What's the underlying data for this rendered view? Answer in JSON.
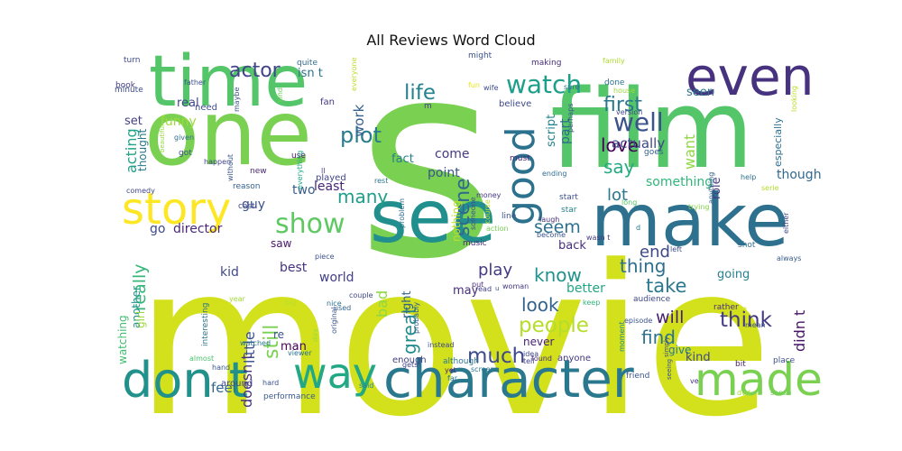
{
  "chart_data": {
    "type": "wordcloud",
    "title": "All Reviews Word Cloud",
    "words": [
      {
        "text": "movie",
        "weight": 100,
        "color": "#d2e11c"
      },
      {
        "text": "s",
        "weight": 95,
        "color": "#7ad151"
      },
      {
        "text": "film",
        "weight": 78,
        "color": "#54c568"
      },
      {
        "text": "one",
        "weight": 62,
        "color": "#7ad151"
      },
      {
        "text": "time",
        "weight": 52,
        "color": "#54c568"
      },
      {
        "text": "see",
        "weight": 50,
        "color": "#218f8d"
      },
      {
        "text": "make",
        "weight": 48,
        "color": "#2d718e"
      },
      {
        "text": "even",
        "weight": 44,
        "color": "#46327e"
      },
      {
        "text": "character",
        "weight": 42,
        "color": "#2a788e"
      },
      {
        "text": "way",
        "weight": 38,
        "color": "#22a884"
      },
      {
        "text": "don t",
        "weight": 37,
        "color": "#21918c"
      },
      {
        "text": "made",
        "weight": 36,
        "color": "#7ad151"
      },
      {
        "text": "good",
        "weight": 34,
        "color": "#2c728e"
      },
      {
        "text": "story",
        "weight": 34,
        "color": "#fde725"
      },
      {
        "text": "show",
        "weight": 28,
        "color": "#5ec962"
      },
      {
        "text": "well",
        "weight": 22,
        "color": "#3b528b"
      },
      {
        "text": "watch",
        "weight": 22,
        "color": "#1f9e89"
      },
      {
        "text": "scene",
        "weight": 22,
        "color": "#31688e"
      },
      {
        "text": "life",
        "weight": 20,
        "color": "#26828e"
      },
      {
        "text": "actor",
        "weight": 20,
        "color": "#414487"
      },
      {
        "text": "plot",
        "weight": 20,
        "color": "#287c8e"
      },
      {
        "text": "people",
        "weight": 20,
        "color": "#b5de2b"
      },
      {
        "text": "still",
        "weight": 20,
        "color": "#7ad151"
      },
      {
        "text": "really",
        "weight": 19,
        "color": "#35b779"
      },
      {
        "text": "much",
        "weight": 19,
        "color": "#3e4989"
      },
      {
        "text": "first",
        "weight": 18,
        "color": "#2a788e"
      },
      {
        "text": "think",
        "weight": 18,
        "color": "#443983"
      },
      {
        "text": "love",
        "weight": 17,
        "color": "#440154"
      },
      {
        "text": "great",
        "weight": 17,
        "color": "#228c8d"
      },
      {
        "text": "many",
        "weight": 17,
        "color": "#1f9e89"
      },
      {
        "text": "seem",
        "weight": 17,
        "color": "#2c728e"
      },
      {
        "text": "acting",
        "weight": 16,
        "color": "#20a386"
      },
      {
        "text": "say",
        "weight": 16,
        "color": "#25ab82"
      },
      {
        "text": "look",
        "weight": 16,
        "color": "#33638d"
      },
      {
        "text": "find",
        "weight": 16,
        "color": "#2c728e"
      },
      {
        "text": "take",
        "weight": 16,
        "color": "#2a788e"
      },
      {
        "text": "thing",
        "weight": 16,
        "color": "#2e6f8e"
      },
      {
        "text": "know",
        "weight": 16,
        "color": "#21918c"
      },
      {
        "text": "work",
        "weight": 15,
        "color": "#35608d"
      },
      {
        "text": "want",
        "weight": 15,
        "color": "#90d743"
      },
      {
        "text": "little",
        "weight": 15,
        "color": "#3b528b"
      },
      {
        "text": "bad",
        "weight": 15,
        "color": "#8fd744"
      },
      {
        "text": "will",
        "weight": 15,
        "color": "#481f70"
      },
      {
        "text": "didn t",
        "weight": 15,
        "color": "#471365"
      },
      {
        "text": "lot",
        "weight": 14,
        "color": "#2a788e"
      },
      {
        "text": "end",
        "weight": 14,
        "color": "#3e4a89"
      },
      {
        "text": "play",
        "weight": 14,
        "color": "#443a83"
      },
      {
        "text": "doesn t",
        "weight": 14,
        "color": "#46337f"
      },
      {
        "text": "feel",
        "weight": 13,
        "color": "#31688e"
      },
      {
        "text": "actually",
        "weight": 13,
        "color": "#404688"
      },
      {
        "text": "funny",
        "weight": 12,
        "color": "#9fda3a"
      },
      {
        "text": "real",
        "weight": 12,
        "color": "#3f4788"
      },
      {
        "text": "isn t",
        "weight": 12,
        "color": "#2c728e"
      },
      {
        "text": "set",
        "weight": 12,
        "color": "#433e85"
      },
      {
        "text": "thought",
        "weight": 12,
        "color": "#2a788e"
      },
      {
        "text": "come",
        "weight": 12,
        "color": "#443983"
      },
      {
        "text": "point",
        "weight": 12,
        "color": "#39558c"
      },
      {
        "text": "part",
        "weight": 12,
        "color": "#2e6d8e"
      },
      {
        "text": "fact",
        "weight": 11,
        "color": "#277f8e"
      },
      {
        "text": "least",
        "weight": 12,
        "color": "#482576"
      },
      {
        "text": "two",
        "weight": 12,
        "color": "#355e8d"
      },
      {
        "text": "guy",
        "weight": 12,
        "color": "#3b528b"
      },
      {
        "text": "script",
        "weight": 12,
        "color": "#25848e"
      },
      {
        "text": "seen",
        "weight": 12,
        "color": "#2c728e"
      },
      {
        "text": "something",
        "weight": 12,
        "color": "#31b57b"
      },
      {
        "text": "role",
        "weight": 12,
        "color": "#443983"
      },
      {
        "text": "though",
        "weight": 12,
        "color": "#30698e"
      },
      {
        "text": "director",
        "weight": 12,
        "color": "#482878"
      },
      {
        "text": "go",
        "weight": 12,
        "color": "#3e4a89"
      },
      {
        "text": "another",
        "weight": 12,
        "color": "#21918c"
      },
      {
        "text": "best",
        "weight": 12,
        "color": "#46327e"
      },
      {
        "text": "world",
        "weight": 12,
        "color": "#423f85"
      },
      {
        "text": "saw",
        "weight": 12,
        "color": "#481a6c"
      },
      {
        "text": "kid",
        "weight": 12,
        "color": "#3f4889"
      },
      {
        "text": "right",
        "weight": 12,
        "color": "#33638d"
      },
      {
        "text": "back",
        "weight": 12,
        "color": "#472f7d"
      },
      {
        "text": "better",
        "weight": 12,
        "color": "#21a585"
      },
      {
        "text": "going",
        "weight": 12,
        "color": "#26818e"
      },
      {
        "text": "may",
        "weight": 11,
        "color": "#472d7b"
      },
      {
        "text": "give",
        "weight": 11,
        "color": "#2a788e"
      },
      {
        "text": "never",
        "weight": 11,
        "color": "#482173"
      },
      {
        "text": "man",
        "weight": 11,
        "color": "#440154"
      },
      {
        "text": "re",
        "weight": 11,
        "color": "#3b518b"
      },
      {
        "text": "kind",
        "weight": 11,
        "color": "#3e4989"
      },
      {
        "text": "watching",
        "weight": 11,
        "color": "#42be71"
      },
      {
        "text": "girl",
        "weight": 11,
        "color": "#9bd93c"
      },
      {
        "text": "nothing",
        "weight": 11,
        "color": "#bddf26"
      },
      {
        "text": "interesting",
        "weight": 9,
        "color": "#2c738e"
      },
      {
        "text": "around",
        "weight": 9,
        "color": "#3f4788"
      },
      {
        "text": "performance",
        "weight": 8,
        "color": "#38598c"
      },
      {
        "text": "enough",
        "weight": 9,
        "color": "#424186"
      },
      {
        "text": "although",
        "weight": 9,
        "color": "#2a778e"
      },
      {
        "text": "anyone",
        "weight": 9,
        "color": "#453882"
      },
      {
        "text": "friend",
        "weight": 9,
        "color": "#3a548c"
      },
      {
        "text": "moment",
        "weight": 8,
        "color": "#23888e"
      },
      {
        "text": "audience",
        "weight": 9,
        "color": "#3e4a89"
      },
      {
        "text": "rather",
        "weight": 9,
        "color": "#472e7c"
      },
      {
        "text": "bit",
        "weight": 9,
        "color": "#481a6c"
      },
      {
        "text": "place",
        "weight": 8,
        "color": "#3c4f8a"
      },
      {
        "text": "shot",
        "weight": 9,
        "color": "#2e6e8e"
      },
      {
        "text": "new",
        "weight": 8,
        "color": "#482677"
      },
      {
        "text": "cast",
        "weight": 8,
        "color": "#3f4889"
      },
      {
        "text": "reason",
        "weight": 8,
        "color": "#35608d"
      },
      {
        "text": "played",
        "weight": 8,
        "color": "#404588"
      },
      {
        "text": "fan",
        "weight": 8,
        "color": "#453781"
      },
      {
        "text": "need",
        "weight": 8,
        "color": "#3d4d8a"
      },
      {
        "text": "got",
        "weight": 8,
        "color": "#3b528b"
      },
      {
        "text": "use",
        "weight": 8,
        "color": "#481b6d"
      },
      {
        "text": "believe",
        "weight": 8,
        "color": "#3e4989"
      },
      {
        "text": "making",
        "weight": 8,
        "color": "#472c7a"
      },
      {
        "text": "might",
        "weight": 8,
        "color": "#3a538b"
      },
      {
        "text": "quite",
        "weight": 8,
        "color": "#2f6b8e"
      },
      {
        "text": "family",
        "weight": 8,
        "color": "#addc30"
      },
      {
        "text": "turn",
        "weight": 8,
        "color": "#3e4989"
      },
      {
        "text": "book",
        "weight": 8,
        "color": "#433d84"
      },
      {
        "text": "minute",
        "weight": 8,
        "color": "#3d4d8a"
      },
      {
        "text": "father",
        "weight": 8,
        "color": "#3b528b"
      },
      {
        "text": "music",
        "weight": 8,
        "color": "#472a7a"
      },
      {
        "text": "done",
        "weight": 8,
        "color": "#2c728e"
      },
      {
        "text": "comedy",
        "weight": 7,
        "color": "#3f4788"
      },
      {
        "text": "goes",
        "weight": 8,
        "color": "#33628d"
      },
      {
        "text": "start",
        "weight": 8,
        "color": "#3b518b"
      },
      {
        "text": "star",
        "weight": 8,
        "color": "#26818e"
      },
      {
        "text": "line",
        "weight": 8,
        "color": "#3b528b"
      },
      {
        "text": "long",
        "weight": 7,
        "color": "#56c667"
      },
      {
        "text": "must",
        "weight": 8,
        "color": "#482475"
      },
      {
        "text": "ending",
        "weight": 7,
        "color": "#2f6c8e"
      },
      {
        "text": "action",
        "weight": 7,
        "color": "#77d153"
      },
      {
        "text": "become",
        "weight": 7,
        "color": "#39568c"
      },
      {
        "text": "laugh",
        "weight": 7,
        "color": "#472f7d"
      },
      {
        "text": "wasn t",
        "weight": 7,
        "color": "#453882"
      },
      {
        "text": "left",
        "weight": 7,
        "color": "#3d4e8a"
      },
      {
        "text": "put",
        "weight": 7,
        "color": "#472d7b"
      },
      {
        "text": "read",
        "weight": 7,
        "color": "#433d84"
      },
      {
        "text": "woman",
        "weight": 7,
        "color": "#443983"
      },
      {
        "text": "keep",
        "weight": 7,
        "color": "#30b47b"
      },
      {
        "text": "idea",
        "weight": 7,
        "color": "#3f4889"
      },
      {
        "text": "found",
        "weight": 7,
        "color": "#482979"
      },
      {
        "text": "tell",
        "weight": 7,
        "color": "#424086"
      },
      {
        "text": "yet",
        "weight": 7,
        "color": "#481d6f"
      },
      {
        "text": "far",
        "weight": 7,
        "color": "#2c738e"
      },
      {
        "text": "screen",
        "weight": 7,
        "color": "#2b748e"
      },
      {
        "text": "gets",
        "weight": 7,
        "color": "#414287"
      },
      {
        "text": "said",
        "weight": 7,
        "color": "#23898e"
      },
      {
        "text": "hard",
        "weight": 7,
        "color": "#3b518b"
      },
      {
        "text": "hand",
        "weight": 7,
        "color": "#38588c"
      },
      {
        "text": "almost",
        "weight": 7,
        "color": "#4ac16d"
      },
      {
        "text": "watched",
        "weight": 7,
        "color": "#2a778e"
      },
      {
        "text": "viewer",
        "weight": 7,
        "color": "#2d708e"
      },
      {
        "text": "episode",
        "weight": 7,
        "color": "#3b528b"
      },
      {
        "text": "instead",
        "weight": 7,
        "color": "#3e4989"
      },
      {
        "text": "probably",
        "weight": 7,
        "color": "#355f8d"
      },
      {
        "text": "couple",
        "weight": 7,
        "color": "#3f4788"
      },
      {
        "text": "used",
        "weight": 7,
        "color": "#33638d"
      },
      {
        "text": "original",
        "weight": 7,
        "color": "#3a548c"
      },
      {
        "text": "day",
        "weight": 7,
        "color": "#a0da39"
      },
      {
        "text": "nice",
        "weight": 7,
        "color": "#2d718e"
      },
      {
        "text": "big",
        "weight": 7,
        "color": "#b8de29"
      },
      {
        "text": "piece",
        "weight": 7,
        "color": "#3b528b"
      },
      {
        "text": "rest",
        "weight": 7,
        "color": "#2b758e"
      },
      {
        "text": "problem",
        "weight": 7,
        "color": "#2e6e8e"
      },
      {
        "text": "someone",
        "weight": 7,
        "color": "#3d4e8a"
      },
      {
        "text": "money",
        "weight": 7,
        "color": "#453781"
      },
      {
        "text": "course",
        "weight": 7,
        "color": "#c2df23"
      },
      {
        "text": "perhaps",
        "weight": 7,
        "color": "#3b528b"
      },
      {
        "text": "version",
        "weight": 7,
        "color": "#3f4788"
      },
      {
        "text": "sure",
        "weight": 7,
        "color": "#2f6c8e"
      },
      {
        "text": "wife",
        "weight": 7,
        "color": "#3e4c8a"
      },
      {
        "text": "house",
        "weight": 7,
        "color": "#9dd93b"
      },
      {
        "text": "fun",
        "weight": 7,
        "color": "#e5e419"
      },
      {
        "text": "maybe",
        "weight": 7,
        "color": "#3b518b"
      },
      {
        "text": "everyone",
        "weight": 7,
        "color": "#bddf26"
      },
      {
        "text": "kind",
        "weight": 7,
        "color": "#6ece58"
      },
      {
        "text": "everything",
        "weight": 7,
        "color": "#22a785"
      },
      {
        "text": "ll",
        "weight": 7,
        "color": "#433e85"
      },
      {
        "text": "given",
        "weight": 7,
        "color": "#2e6f8e"
      },
      {
        "text": "beautiful",
        "weight": 6,
        "color": "#95d840"
      },
      {
        "text": "without",
        "weight": 7,
        "color": "#3a548c"
      },
      {
        "text": "happen",
        "weight": 7,
        "color": "#404688"
      },
      {
        "text": "year",
        "weight": 7,
        "color": "#a2da37"
      },
      {
        "text": "trying",
        "weight": 7,
        "color": "#86d549"
      },
      {
        "text": "anything",
        "weight": 7,
        "color": "#35608d"
      },
      {
        "text": "live",
        "weight": 7,
        "color": "#cde11d"
      },
      {
        "text": "mean",
        "weight": 7,
        "color": "#3b518b"
      },
      {
        "text": "always",
        "weight": 7,
        "color": "#38598c"
      },
      {
        "text": "help",
        "weight": 7,
        "color": "#2d718e"
      },
      {
        "text": "either",
        "weight": 7,
        "color": "#404588"
      },
      {
        "text": "serie",
        "weight": 7,
        "color": "#b2dd2d"
      },
      {
        "text": "looking",
        "weight": 7,
        "color": "#bade28"
      },
      {
        "text": "dvd",
        "weight": 7,
        "color": "#a2da37"
      },
      {
        "text": "sense",
        "weight": 7,
        "color": "#6ccd5a"
      },
      {
        "text": "especially",
        "weight": 11,
        "color": "#2e6f8e"
      },
      {
        "text": "simply",
        "weight": 6,
        "color": "#3f4889"
      },
      {
        "text": "seeing",
        "weight": 6,
        "color": "#3c508b"
      },
      {
        "text": "ve",
        "weight": 7,
        "color": "#463480"
      },
      {
        "text": "d",
        "weight": 8,
        "color": "#2a788e"
      },
      {
        "text": "m",
        "weight": 9,
        "color": "#433e85"
      },
      {
        "text": "u",
        "weight": 7,
        "color": "#3b528b"
      }
    ]
  }
}
